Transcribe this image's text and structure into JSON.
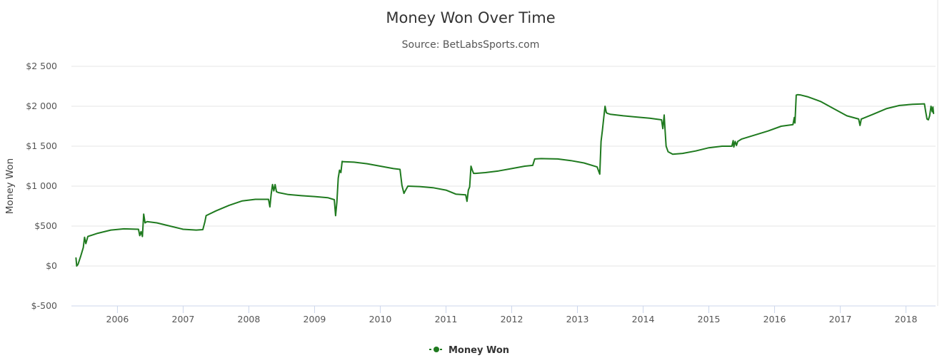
{
  "chart_data": {
    "type": "line",
    "title": "Money Won Over Time",
    "subtitle": "Source: BetLabsSports.com",
    "ylabel": "Money Won",
    "xlabel": "",
    "ylim": [
      -500,
      2500
    ],
    "xlim": [
      2005.3,
      2018.45
    ],
    "grid": true,
    "legend_position": "bottom-center",
    "y_ticks": [
      -500,
      0,
      500,
      1000,
      1500,
      2000,
      2500
    ],
    "y_tick_labels": [
      "$-500",
      "$0",
      "$500",
      "$1 000",
      "$1 500",
      "$2 000",
      "$2 500"
    ],
    "x_ticks": [
      2006,
      2007,
      2008,
      2009,
      2010,
      2011,
      2012,
      2013,
      2014,
      2015,
      2016,
      2017,
      2018
    ],
    "x_tick_labels": [
      "2006",
      "2007",
      "2008",
      "2009",
      "2010",
      "2011",
      "2012",
      "2013",
      "2014",
      "2015",
      "2016",
      "2017",
      "2018"
    ],
    "series": [
      {
        "name": "Money Won",
        "color": "#1f7a1f",
        "x": [
          2005.37,
          2005.38,
          2005.4,
          2005.44,
          2005.48,
          2005.5,
          2005.52,
          2005.55,
          2005.7,
          2005.9,
          2006.1,
          2006.32,
          2006.34,
          2006.36,
          2006.38,
          2006.4,
          2006.42,
          2006.45,
          2006.6,
          2006.8,
          2007.0,
          2007.2,
          2007.3,
          2007.33,
          2007.35,
          2007.5,
          2007.7,
          2007.9,
          2008.1,
          2008.3,
          2008.32,
          2008.34,
          2008.36,
          2008.38,
          2008.4,
          2008.42,
          2008.45,
          2008.6,
          2008.8,
          2009.0,
          2009.2,
          2009.3,
          2009.32,
          2009.34,
          2009.36,
          2009.38,
          2009.4,
          2009.42,
          2009.44,
          2009.6,
          2009.8,
          2010.0,
          2010.2,
          2010.3,
          2010.33,
          2010.36,
          2010.38,
          2010.42,
          2010.6,
          2010.8,
          2011.0,
          2011.15,
          2011.3,
          2011.32,
          2011.34,
          2011.36,
          2011.38,
          2011.4,
          2011.42,
          2011.45,
          2011.6,
          2011.8,
          2012.0,
          2012.2,
          2012.32,
          2012.35,
          2012.45,
          2012.7,
          2012.9,
          2013.1,
          2013.3,
          2013.34,
          2013.36,
          2013.38,
          2013.4,
          2013.42,
          2013.44,
          2013.46,
          2013.5,
          2013.7,
          2013.9,
          2014.1,
          2014.28,
          2014.3,
          2014.32,
          2014.33,
          2014.35,
          2014.38,
          2014.45,
          2014.6,
          2014.8,
          2015.0,
          2015.2,
          2015.35,
          2015.37,
          2015.38,
          2015.4,
          2015.42,
          2015.44,
          2015.5,
          2015.7,
          2015.9,
          2016.1,
          2016.28,
          2016.3,
          2016.31,
          2016.33,
          2016.35,
          2016.4,
          2016.5,
          2016.7,
          2016.9,
          2017.1,
          2017.28,
          2017.3,
          2017.32,
          2017.35,
          2017.5,
          2017.7,
          2017.9,
          2018.1,
          2018.28,
          2018.3,
          2018.32,
          2018.34,
          2018.36,
          2018.38,
          2018.4,
          2018.41,
          2018.42
        ],
        "y": [
          100,
          0,
          20,
          120,
          230,
          360,
          280,
          370,
          410,
          450,
          465,
          460,
          380,
          430,
          370,
          650,
          540,
          555,
          540,
          500,
          460,
          450,
          455,
          550,
          630,
          690,
          760,
          815,
          835,
          835,
          740,
          900,
          1020,
          940,
          1020,
          930,
          920,
          895,
          880,
          870,
          855,
          830,
          630,
          800,
          1100,
          1200,
          1170,
          1310,
          1305,
          1300,
          1280,
          1250,
          1220,
          1210,
          1010,
          910,
          940,
          1000,
          995,
          980,
          950,
          900,
          890,
          810,
          950,
          990,
          1250,
          1200,
          1160,
          1160,
          1170,
          1190,
          1220,
          1250,
          1260,
          1340,
          1345,
          1340,
          1320,
          1290,
          1240,
          1150,
          1560,
          1700,
          1850,
          2000,
          1920,
          1910,
          1900,
          1880,
          1865,
          1850,
          1830,
          1720,
          1890,
          1750,
          1500,
          1430,
          1400,
          1410,
          1440,
          1480,
          1500,
          1500,
          1570,
          1490,
          1560,
          1510,
          1560,
          1590,
          1640,
          1690,
          1750,
          1770,
          1860,
          1790,
          2140,
          2145,
          2140,
          2120,
          2060,
          1970,
          1880,
          1840,
          1760,
          1840,
          1850,
          1900,
          1970,
          2010,
          2025,
          2030,
          1930,
          1840,
          1830,
          1880,
          2000,
          1930,
          1990,
          1910
        ]
      }
    ]
  }
}
